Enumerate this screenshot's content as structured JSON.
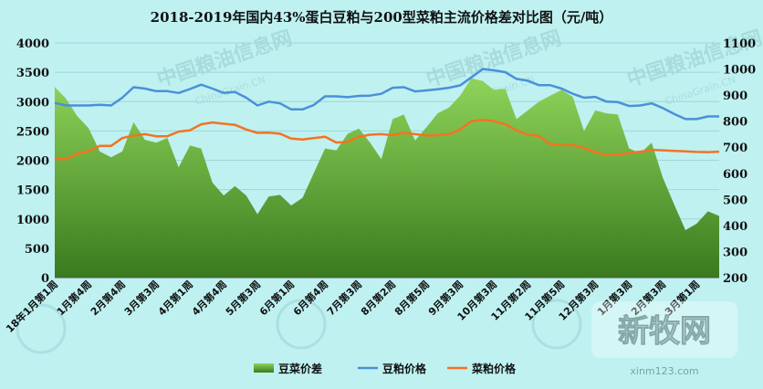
{
  "chart_data": {
    "type": "area+line",
    "title": "2018-2019年国内43%蛋白豆粕与200型菜粕主流价格差对比图（元/吨）",
    "y_left": {
      "ylim": [
        0,
        4000
      ],
      "ticks": [
        0,
        500,
        1000,
        1500,
        2000,
        2500,
        3000,
        3500,
        4000
      ]
    },
    "y_right": {
      "ylim": [
        200,
        1100
      ],
      "ticks": [
        200,
        300,
        400,
        500,
        600,
        700,
        800,
        900,
        1000,
        1100
      ]
    },
    "x_tick_labels": [
      "18年1月第1周",
      "1月第4周",
      "2月第4周",
      "3月第3周",
      "4月第1周",
      "4月第4周",
      "5月第3周",
      "6月第1周",
      "6月第4周",
      "7月第3周",
      "8月第2周",
      "8月第5周",
      "9月第3周",
      "10月第3周",
      "11月第2周",
      "11月第5周",
      "12月第3周",
      "1月第3周",
      "2月第3周",
      "3月第1周"
    ],
    "x_tick_index": [
      0,
      3,
      6,
      9,
      12,
      15,
      18,
      21,
      24,
      27,
      30,
      33,
      36,
      39,
      42,
      45,
      48,
      51,
      54,
      57
    ],
    "grid": true,
    "legend_position": "bottom",
    "series": [
      {
        "name": "豆菜价差",
        "type": "area",
        "axis": "left",
        "color": "#7ac143",
        "values": [
          3250,
          3050,
          2750,
          2550,
          2150,
          2050,
          2150,
          2650,
          2350,
          2300,
          2380,
          1880,
          2250,
          2200,
          1620,
          1400,
          1560,
          1400,
          1080,
          1380,
          1410,
          1230,
          1360,
          1780,
          2200,
          2170,
          2450,
          2540,
          2300,
          2020,
          2700,
          2780,
          2340,
          2560,
          2800,
          2900,
          3100,
          3400,
          3350,
          3200,
          3220,
          2700,
          2850,
          3000,
          3100,
          3200,
          3080,
          2500,
          2850,
          2800,
          2780,
          2200,
          2120,
          2300,
          1700,
          1250,
          810,
          920,
          1130,
          1050
        ]
      },
      {
        "name": "豆粕价格",
        "type": "line",
        "axis": "right",
        "color": "#4a90d9",
        "values": [
          870,
          860,
          860,
          860,
          863,
          860,
          890,
          930,
          925,
          915,
          915,
          908,
          923,
          940,
          925,
          908,
          912,
          890,
          860,
          875,
          868,
          845,
          845,
          862,
          895,
          895,
          892,
          897,
          898,
          905,
          928,
          930,
          914,
          918,
          922,
          928,
          937,
          968,
          1000,
          995,
          988,
          962,
          955,
          938,
          938,
          925,
          905,
          890,
          893,
          875,
          873,
          858,
          860,
          868,
          850,
          828,
          808,
          808,
          818,
          818
        ]
      },
      {
        "name": "菜粕价格",
        "type": "line",
        "axis": "right",
        "color": "#f47321",
        "values": [
          655,
          655,
          675,
          685,
          705,
          705,
          735,
          745,
          750,
          742,
          742,
          760,
          765,
          788,
          795,
          790,
          786,
          768,
          755,
          756,
          752,
          733,
          730,
          735,
          740,
          718,
          720,
          740,
          748,
          750,
          746,
          755,
          750,
          745,
          746,
          750,
          768,
          800,
          805,
          800,
          788,
          765,
          748,
          743,
          712,
          708,
          708,
          697,
          682,
          670,
          672,
          678,
          683,
          690,
          688,
          686,
          684,
          682,
          681,
          683
        ]
      }
    ]
  },
  "watermark": {
    "site_cn": "中国粮油信息网",
    "site_en": "ChinaGrain.CN",
    "brand_cn": "新牧网",
    "brand_url": "xinm123.com"
  }
}
